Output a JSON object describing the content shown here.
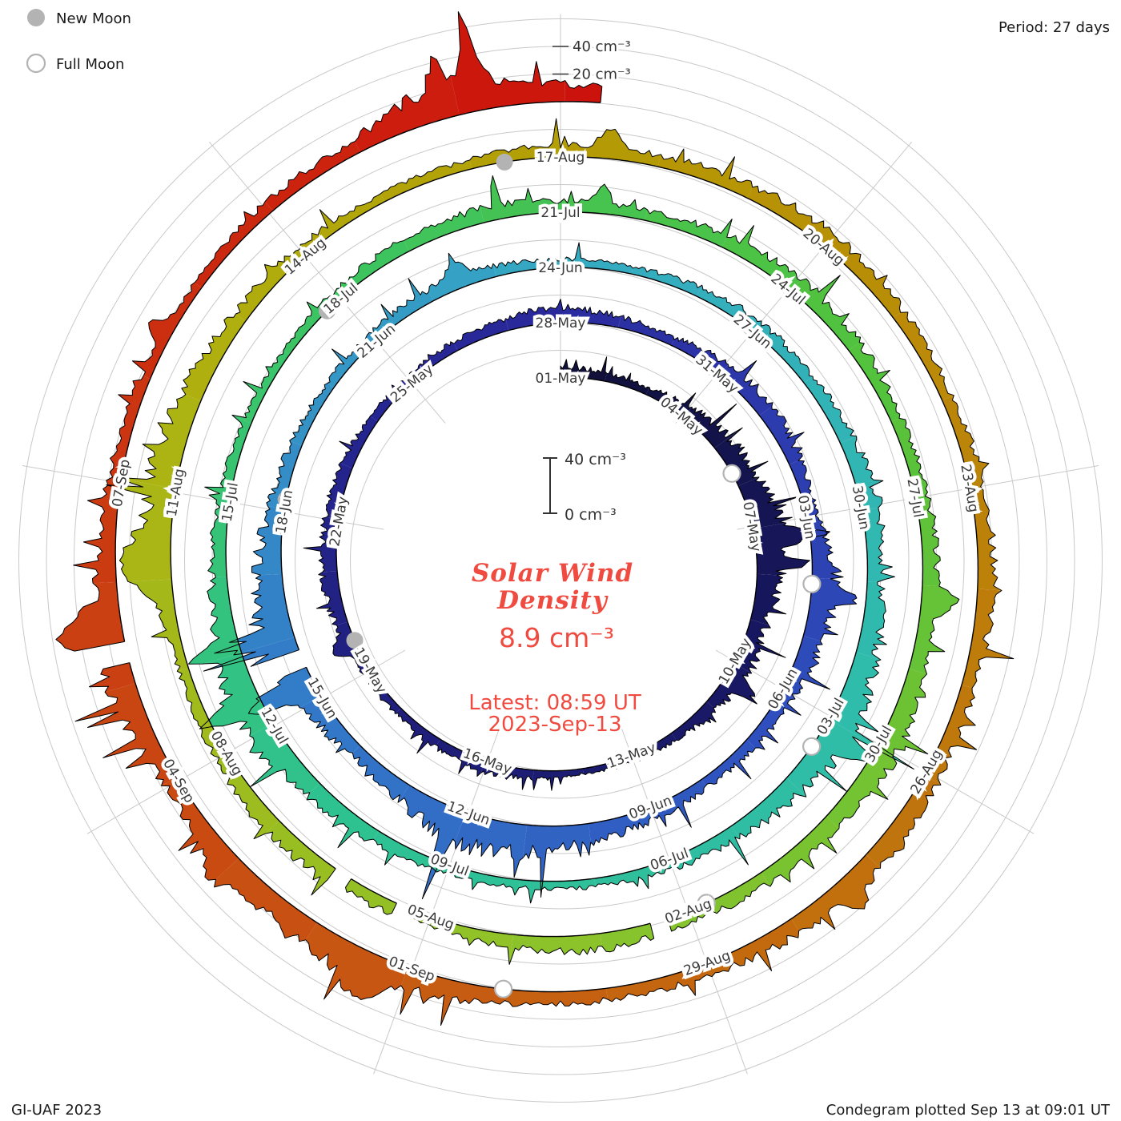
{
  "legend": {
    "new_moon": "New Moon",
    "full_moon": "Full Moon"
  },
  "header": {
    "period": "Period: 27 days"
  },
  "footer": {
    "credit": "GI-UAF 2023",
    "plotted": "Condegram plotted Sep 13 at 09:01 UT"
  },
  "center": {
    "title_line1": "Solar Wind",
    "title_line2": "Density",
    "value": "8.9 cm⁻³",
    "latest_line1": "Latest: 08:59 UT",
    "latest_line2": "2023-Sep-13"
  },
  "scale_bar": {
    "top": "40 cm⁻³",
    "bottom": "0 cm⁻³"
  },
  "colors": {
    "accent_red": "#ef4b40",
    "grid": "#c9c9c9",
    "label": "#3a3a3a",
    "moon_gray": "#b3b3b3",
    "outline": "#000000"
  },
  "chart_data": {
    "type": "line",
    "layout": "spiral_polar_condegram",
    "title": "Solar Wind Density",
    "units": "cm⁻³",
    "period_days": 27,
    "start_date": "2023-05-01",
    "end_datetime": "2023-09-13 09:00 UT",
    "latest_value_cm3": 8.9,
    "latest_time": "08:59 UT",
    "ring_step_cm3": 20,
    "outer_ring_labels": [
      {
        "label": "40 cm⁻³",
        "cm3": 40
      },
      {
        "label": "20 cm⁻³",
        "cm3": 20
      }
    ],
    "label_step_days": 3,
    "date_labels": [
      "01-May",
      "04-May",
      "07-May",
      "10-May",
      "13-May",
      "16-May",
      "19-May",
      "22-May",
      "25-May",
      "28-May",
      "31-May",
      "03-Jun",
      "06-Jun",
      "09-Jun",
      "12-Jun",
      "15-Jun",
      "18-Jun",
      "21-Jun",
      "24-Jun",
      "27-Jun",
      "30-Jun",
      "03-Jul",
      "06-Jul",
      "09-Jul",
      "12-Jul",
      "15-Jul",
      "18-Jul",
      "21-Jul",
      "24-Jul",
      "27-Jul",
      "30-Jul",
      "02-Aug",
      "05-Aug",
      "08-Aug",
      "11-Aug",
      "14-Aug",
      "17-Aug",
      "20-Aug",
      "23-Aug",
      "26-Aug",
      "29-Aug",
      "01-Sep",
      "04-Sep",
      "07-Sep"
    ],
    "daily_density_cm3": [
      8,
      6,
      5,
      9,
      13,
      16,
      24,
      18,
      11,
      14,
      9,
      6,
      5,
      4,
      6,
      8,
      7,
      5,
      6,
      9,
      11,
      10,
      8,
      6,
      5,
      7,
      9,
      11,
      8,
      6,
      10,
      12,
      9,
      7,
      18,
      15,
      10,
      8,
      7,
      9,
      13,
      20,
      24,
      13,
      8,
      16,
      26,
      19,
      11,
      8,
      6,
      7,
      9,
      8,
      6,
      5,
      7,
      9,
      8,
      10,
      13,
      10,
      15,
      22,
      16,
      10,
      8,
      6,
      5,
      7,
      9,
      12,
      22,
      18,
      11,
      8,
      6,
      5,
      7,
      9,
      11,
      8,
      7,
      9,
      12,
      10,
      8,
      9,
      11,
      13,
      16,
      11,
      10,
      8,
      12,
      9,
      7,
      10,
      12,
      9,
      7,
      8,
      20,
      16,
      10,
      8,
      6,
      7,
      9,
      8,
      10,
      12,
      9,
      8,
      10,
      12,
      9,
      11,
      15,
      12,
      9,
      8,
      10,
      15,
      19,
      13,
      10,
      20,
      15,
      9,
      7,
      6,
      8,
      9,
      26,
      12
    ],
    "spikes": [
      [
        6.3,
        30,
        0.1
      ],
      [
        6.8,
        22,
        0.08
      ],
      [
        9.4,
        14,
        0.1
      ],
      [
        18.6,
        10,
        0.15
      ],
      [
        34.3,
        18,
        0.12
      ],
      [
        42.2,
        26,
        0.07
      ],
      [
        45.3,
        30,
        0.12
      ],
      [
        46.1,
        22,
        0.1
      ],
      [
        52.5,
        12,
        0.15
      ],
      [
        63.2,
        22,
        0.1
      ],
      [
        72.4,
        26,
        0.1
      ],
      [
        73.1,
        18,
        0.08
      ],
      [
        81.5,
        12,
        0.1
      ],
      [
        88.2,
        16,
        0.12
      ],
      [
        101.2,
        26,
        0.35
      ],
      [
        108.5,
        14,
        0.12
      ],
      [
        118.4,
        15,
        0.12
      ],
      [
        123.4,
        18,
        0.25
      ],
      [
        125.1,
        14,
        0.2
      ],
      [
        127.6,
        30,
        0.18
      ],
      [
        130.5,
        12,
        0.1
      ],
      [
        133.9,
        16,
        0.1
      ],
      [
        134.22,
        50,
        0.07
      ]
    ],
    "data_gaps_days": [
      [
        45.55,
        45.8
      ],
      [
        93.25,
        93.45
      ],
      [
        96.2,
        96.4
      ],
      [
        97.0,
        97.2
      ],
      [
        127.25,
        127.45
      ]
    ],
    "new_moon_days": [
      18.66,
      48.19,
      77.77,
      107.4
    ],
    "full_moon_days": [
      4.73,
      34.15,
      63.49,
      92.77,
      122.07
    ],
    "colormap": [
      [
        0.0,
        "#101038"
      ],
      [
        0.06,
        "#171760"
      ],
      [
        0.13,
        "#20207f"
      ],
      [
        0.2,
        "#2a2a9e"
      ],
      [
        0.27,
        "#2f4fbe"
      ],
      [
        0.33,
        "#3379c8"
      ],
      [
        0.4,
        "#35aac3"
      ],
      [
        0.46,
        "#30bcab"
      ],
      [
        0.52,
        "#2ec291"
      ],
      [
        0.58,
        "#3ec45e"
      ],
      [
        0.63,
        "#52c23c"
      ],
      [
        0.7,
        "#8ec32a"
      ],
      [
        0.76,
        "#aeb312"
      ],
      [
        0.8,
        "#b49b04"
      ],
      [
        0.85,
        "#bd7f0a"
      ],
      [
        0.9,
        "#c65f12"
      ],
      [
        0.95,
        "#cb3a12"
      ],
      [
        1.0,
        "#cc120c"
      ]
    ]
  }
}
